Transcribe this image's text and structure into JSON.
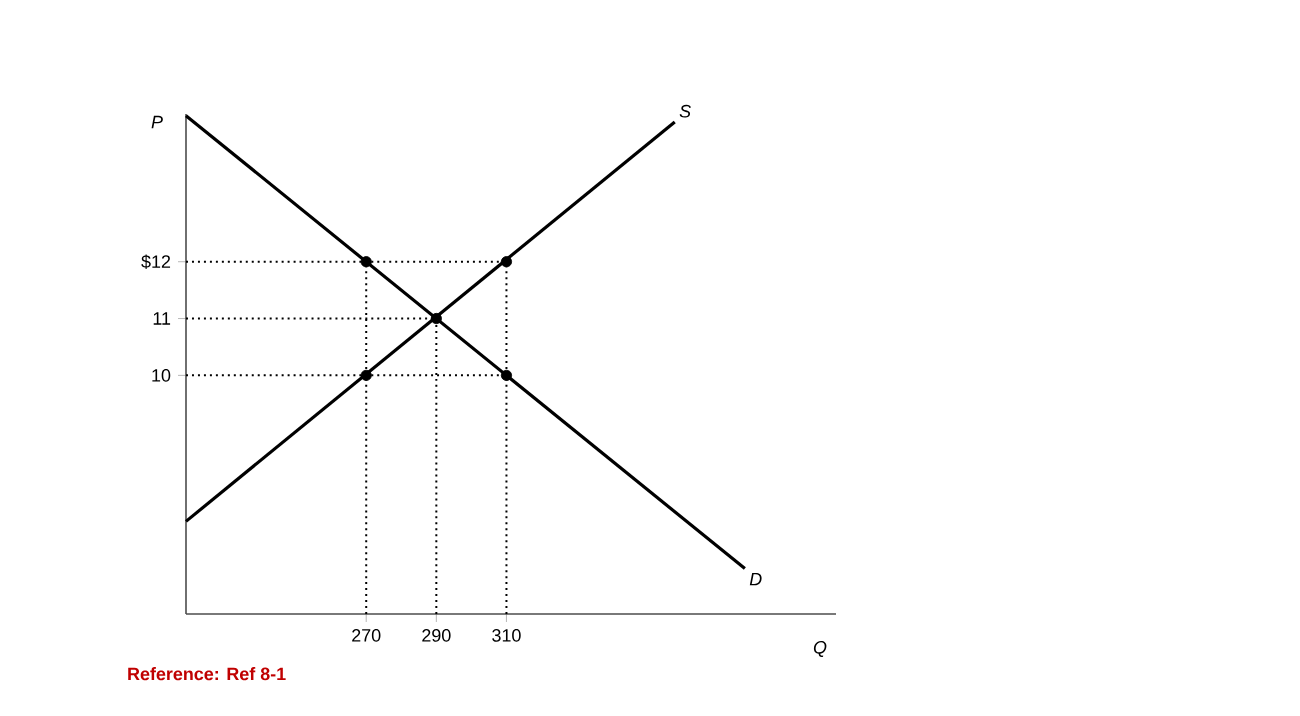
{
  "chart_data": {
    "type": "line",
    "xlabel": "Q",
    "ylabel": "P",
    "xlim": [
      218.6,
      404
    ],
    "ylim": [
      5.8,
      14.6
    ],
    "xticks": [
      270,
      290,
      310
    ],
    "yticks": [
      {
        "value": 12,
        "label": "$12"
      },
      11,
      10
    ],
    "series": [
      {
        "name": "S",
        "type": "line",
        "marker": "none",
        "color": "#000000",
        "x": [
          218.6,
          358
        ],
        "values": [
          7.43,
          14.46
        ]
      },
      {
        "name": "D",
        "type": "line",
        "marker": "none",
        "color": "#000000",
        "x": [
          218.6,
          378
        ],
        "values": [
          14.57,
          6.6
        ]
      },
      {
        "type": "scatter",
        "color": "#000000",
        "marker": "circle",
        "x": [
          270,
          310,
          290,
          270,
          310
        ],
        "values": [
          12,
          12,
          11,
          10,
          10
        ]
      }
    ],
    "ref_lines": [
      {
        "axis": "y",
        "value": 12,
        "line_style": "dotted"
      },
      {
        "axis": "y",
        "value": 11,
        "line_style": "dotted"
      },
      {
        "axis": "y",
        "value": 10,
        "line_style": "dotted"
      },
      {
        "axis": "x",
        "value": 270,
        "line_style": "dotted"
      },
      {
        "axis": "x",
        "value": 290,
        "line_style": "dotted"
      },
      {
        "axis": "x",
        "value": 310,
        "line_style": "dotted"
      }
    ],
    "annotations": [
      "Reference: Ref 8-1"
    ]
  }
}
